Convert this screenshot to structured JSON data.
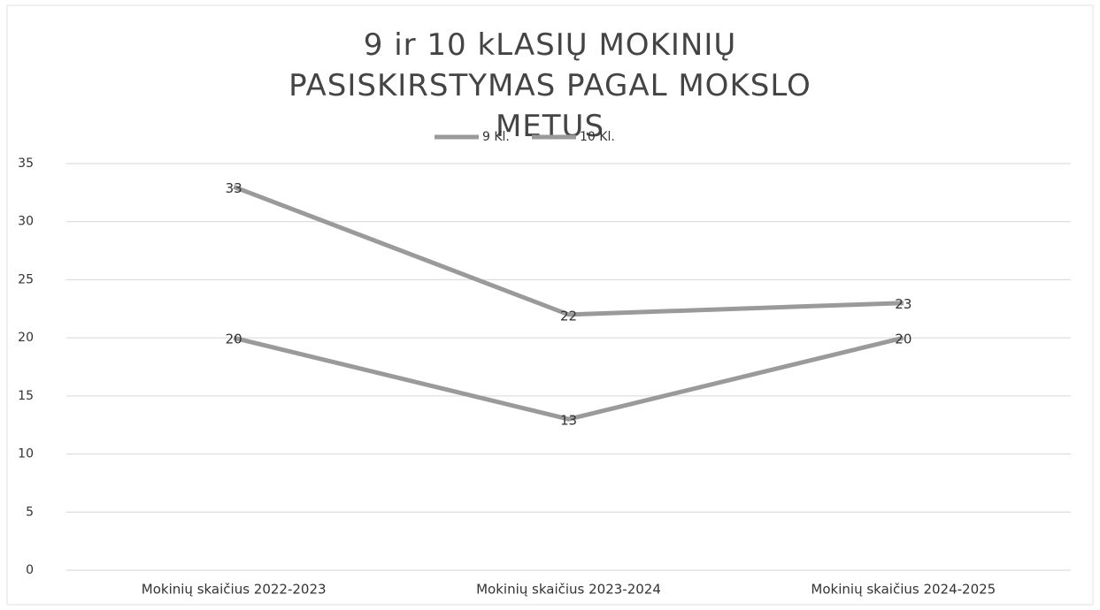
{
  "chart_data": {
    "type": "line",
    "title": "9 ir 10 kLASIŲ MOKINIŲ PASISKIRSTYMAS PAGAL MOKSLO METUS",
    "categories": [
      "Mokinių skaičius 2022-2023",
      "Mokinių skaičius 2023-2024",
      "Mokinių skaičius 2024-2025"
    ],
    "series": [
      {
        "name": "9 Kl.",
        "color": "#9a9a9a",
        "values": [
          33,
          22,
          23
        ]
      },
      {
        "name": "10 Kl.",
        "color": "#9a9a9a",
        "values": [
          20,
          13,
          20
        ]
      }
    ],
    "ylim": [
      0,
      35
    ],
    "yticks": [
      0,
      5,
      10,
      15,
      20,
      25,
      30,
      35
    ],
    "grid": true,
    "legend": "top"
  }
}
